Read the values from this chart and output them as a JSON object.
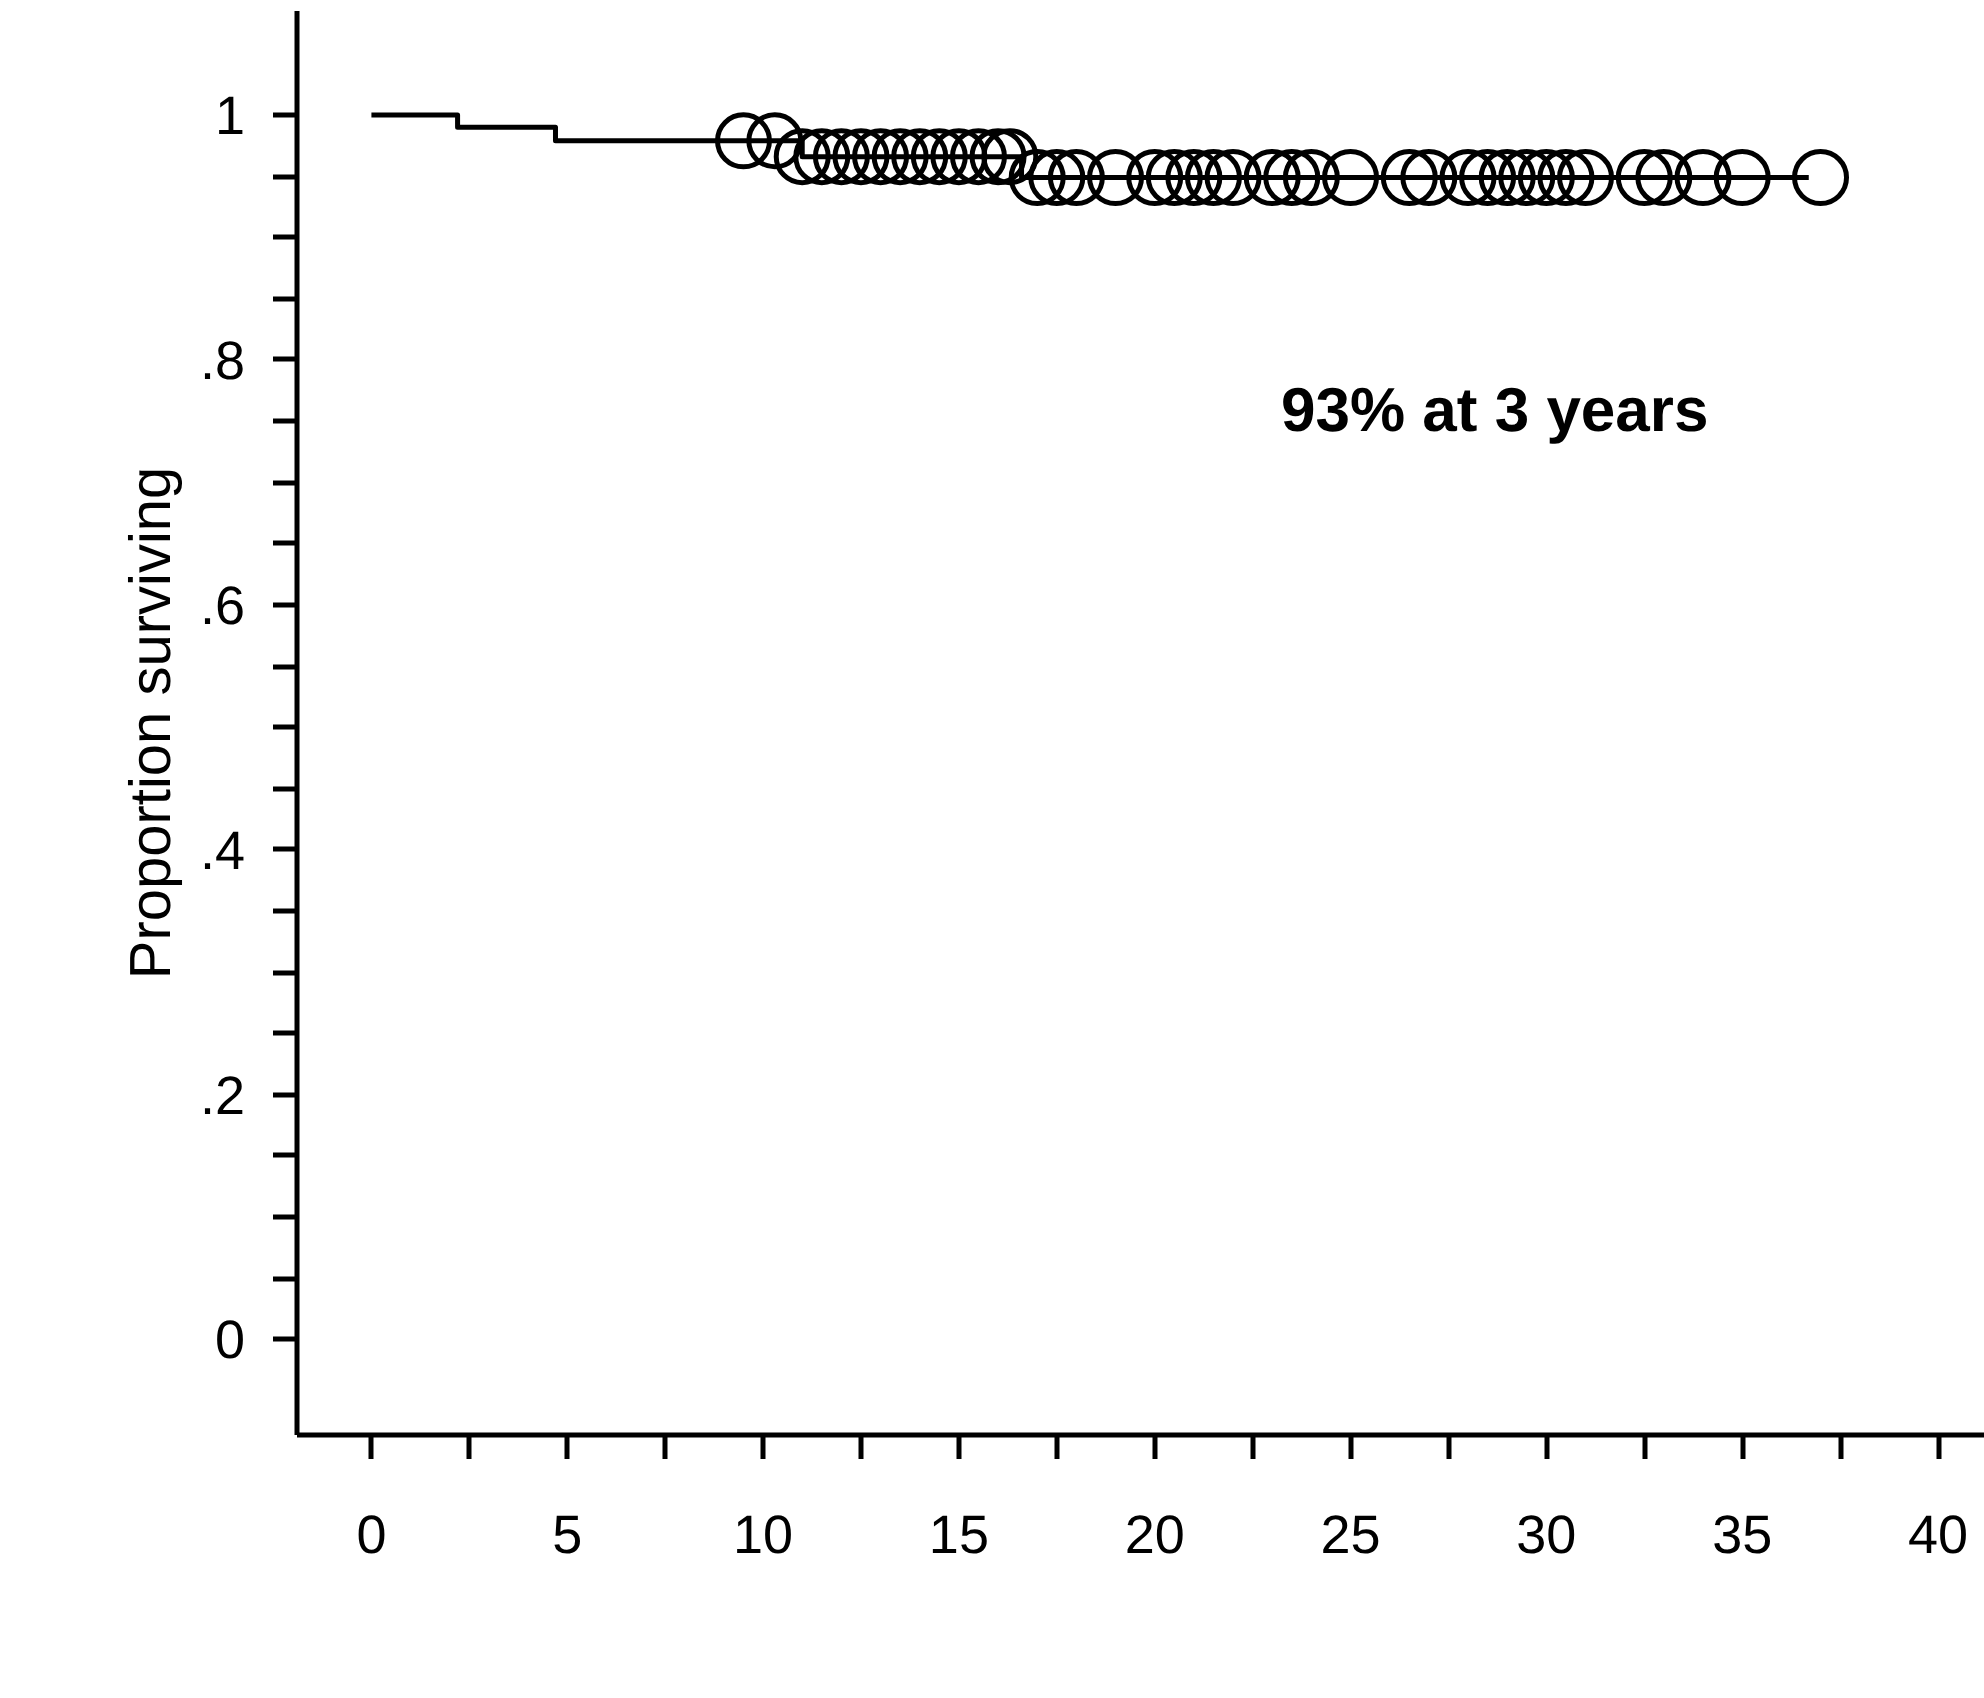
{
  "chart_data": {
    "type": "step",
    "ylabel": "Proportion surviving",
    "annotations": [
      "93% at 3 years"
    ],
    "xlim": [
      -1.9,
      41.2
    ],
    "ylim": [
      -0.078,
      1.085
    ],
    "xticks": [
      0,
      {
        "value": 2.5,
        "label": null
      },
      5,
      {
        "value": 7.5,
        "label": null
      },
      10,
      {
        "value": 12.5,
        "label": null
      },
      15,
      {
        "value": 17.5,
        "label": null
      },
      20,
      {
        "value": 22.5,
        "label": null
      },
      25,
      {
        "value": 27.5,
        "label": null
      },
      30,
      {
        "value": 32.5,
        "label": null
      },
      35,
      {
        "value": 37.5,
        "label": null
      },
      40
    ],
    "yticks": [
      {
        "value": 0,
        "label": "0"
      },
      {
        "value": 0.05,
        "label": null
      },
      {
        "value": 0.1,
        "label": null
      },
      {
        "value": 0.15,
        "label": null
      },
      {
        "value": 0.2,
        "label": ".2"
      },
      {
        "value": 0.25,
        "label": null
      },
      {
        "value": 0.3,
        "label": null
      },
      {
        "value": 0.35,
        "label": null
      },
      {
        "value": 0.4,
        "label": ".4"
      },
      {
        "value": 0.45,
        "label": null
      },
      {
        "value": 0.5,
        "label": null
      },
      {
        "value": 0.55,
        "label": null
      },
      {
        "value": 0.6,
        "label": ".6"
      },
      {
        "value": 0.65,
        "label": null
      },
      {
        "value": 0.7,
        "label": null
      },
      {
        "value": 0.75,
        "label": null
      },
      {
        "value": 0.8,
        "label": ".8"
      },
      {
        "value": 0.85,
        "label": null
      },
      {
        "value": 0.9,
        "label": null
      },
      {
        "value": 0.95,
        "label": null
      },
      {
        "value": 1,
        "label": "1"
      }
    ],
    "grid": false,
    "series": [
      {
        "color": "#000000",
        "x": [
          0,
          2.2,
          4.7,
          11,
          16.6,
          36.7
        ],
        "values": [
          1.0,
          0.99,
          0.979,
          0.966,
          0.949,
          0.949
        ]
      },
      {
        "type": "scatter",
        "color": "#000000",
        "marker": "circle",
        "x": [
          9.5,
          10.3,
          11,
          11.5,
          12,
          12.5,
          13,
          13.5,
          14,
          14.5,
          15,
          15.5,
          16,
          16.3,
          17,
          17.5,
          18,
          19,
          20,
          20.5,
          21,
          21.5,
          22,
          23,
          23.5,
          24,
          25,
          26.5,
          27,
          28,
          28.5,
          29,
          29.5,
          30,
          30.5,
          31,
          32.5,
          33,
          34,
          35,
          37
        ],
        "values": [
          0.979,
          0.979,
          0.966,
          0.966,
          0.966,
          0.966,
          0.966,
          0.966,
          0.966,
          0.966,
          0.966,
          0.966,
          0.966,
          0.966,
          0.949,
          0.949,
          0.949,
          0.949,
          0.949,
          0.949,
          0.949,
          0.949,
          0.949,
          0.949,
          0.949,
          0.949,
          0.949,
          0.949,
          0.949,
          0.949,
          0.949,
          0.949,
          0.949,
          0.949,
          0.949,
          0.949,
          0.949,
          0.949,
          0.949,
          0.949,
          0.949
        ]
      }
    ]
  }
}
